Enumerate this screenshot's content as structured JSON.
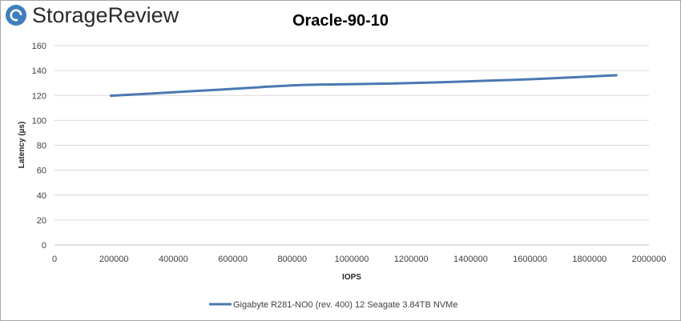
{
  "brand": {
    "name": "StorageReview",
    "accent": "#3f7fbd"
  },
  "chart_data": {
    "type": "line",
    "title": "Oracle-90-10",
    "xlabel": "IOPS",
    "ylabel": "Latency (µs)",
    "xlim": [
      0,
      2000000
    ],
    "ylim": [
      0,
      160
    ],
    "x_ticks": [
      "0",
      "200000",
      "400000",
      "600000",
      "800000",
      "1000000",
      "1200000",
      "1400000",
      "1600000",
      "1800000",
      "2000000"
    ],
    "y_ticks": [
      "0",
      "20",
      "40",
      "60",
      "80",
      "100",
      "120",
      "140",
      "160"
    ],
    "grid": "horizontal",
    "legend_position": "bottom",
    "series": [
      {
        "name": "Gigabyte R281-NO0 (rev. 400) 12 Seagate 3.84TB NVMe",
        "color": "#4a78b0",
        "points": [
          [
            190000,
            119.8
          ],
          [
            300000,
            121.2
          ],
          [
            400000,
            122.6
          ],
          [
            550000,
            124.6
          ],
          [
            700000,
            126.8
          ],
          [
            850000,
            128.5
          ],
          [
            1000000,
            129.1
          ],
          [
            1150000,
            129.7
          ],
          [
            1300000,
            130.6
          ],
          [
            1450000,
            131.8
          ],
          [
            1600000,
            133.0
          ],
          [
            1750000,
            134.6
          ],
          [
            1890000,
            136.2
          ]
        ]
      }
    ]
  }
}
